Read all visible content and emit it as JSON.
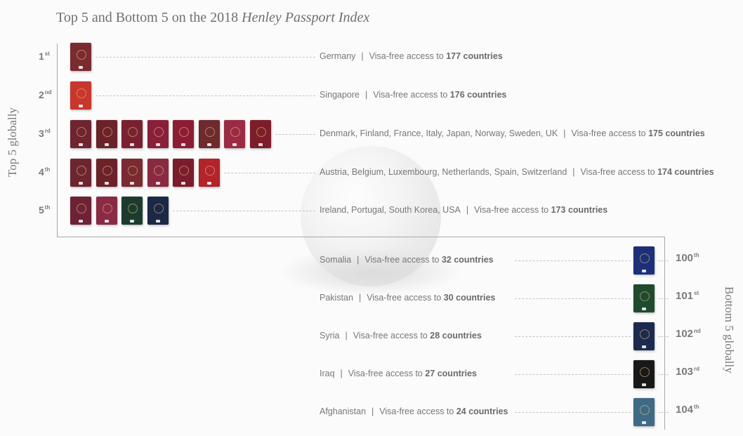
{
  "title": {
    "prefix": "Top 5 and Bottom 5 on the 2018 ",
    "italic": "Henley Passport Index"
  },
  "side_labels": {
    "left": "Top 5 globally",
    "right": "Bottom 5 globally"
  },
  "chart_data": {
    "type": "table",
    "separator": "|",
    "access_prefix": "Visa-free access to ",
    "top": [
      {
        "rank_num": "1",
        "rank_suffix": "st",
        "countries": "Germany",
        "visa_free": 177,
        "visa_text": "177 countries",
        "passport_colors": [
          "#7a2b2f"
        ]
      },
      {
        "rank_num": "2",
        "rank_suffix": "nd",
        "countries": "Singapore",
        "visa_free": 176,
        "visa_text": "176 countries",
        "passport_colors": [
          "#c8362c"
        ]
      },
      {
        "rank_num": "3",
        "rank_suffix": "rd",
        "countries": "Denmark, Finland, France, Italy, Japan, Norway, Sweden, UK",
        "visa_free": 175,
        "visa_text": "175 countries",
        "passport_colors": [
          "#6e2530",
          "#6b2228",
          "#7a2131",
          "#8a1f3a",
          "#8c1c34",
          "#6e2a2c",
          "#9b2a44",
          "#7e1d2a"
        ]
      },
      {
        "rank_num": "4",
        "rank_suffix": "th",
        "countries": "Austria, Belgium, Luxembourg, Netherlands, Spain, Switzerland",
        "visa_free": 174,
        "visa_text": "174 countries",
        "passport_colors": [
          "#6d2530",
          "#6b2229",
          "#7a2a30",
          "#8a2a40",
          "#7a1c2c",
          "#b2232a"
        ]
      },
      {
        "rank_num": "5",
        "rank_suffix": "th",
        "countries": "Ireland, Portugal, South Korea, USA",
        "visa_free": 173,
        "visa_text": "173 countries",
        "passport_colors": [
          "#6d2235",
          "#8a2a44",
          "#1c3b2e",
          "#1b2846"
        ]
      }
    ],
    "bottom": [
      {
        "rank_num": "100",
        "rank_suffix": "th",
        "countries": "Somalia",
        "visa_free": 32,
        "visa_text": "32 countries",
        "passport_color": "#1c2f78"
      },
      {
        "rank_num": "101",
        "rank_suffix": "st",
        "countries": "Pakistan",
        "visa_free": 30,
        "visa_text": "30 countries",
        "passport_color": "#1f4a2e"
      },
      {
        "rank_num": "102",
        "rank_suffix": "nd",
        "countries": "Syria",
        "visa_free": 28,
        "visa_text": "28 countries",
        "passport_color": "#1c2a4e"
      },
      {
        "rank_num": "103",
        "rank_suffix": "rd",
        "countries": "Iraq",
        "visa_free": 27,
        "visa_text": "27 countries",
        "passport_color": "#181818"
      },
      {
        "rank_num": "104",
        "rank_suffix": "th",
        "countries": "Afghanistan",
        "visa_free": 24,
        "visa_text": "24 countries",
        "passport_color": "#3f6a86"
      }
    ]
  }
}
